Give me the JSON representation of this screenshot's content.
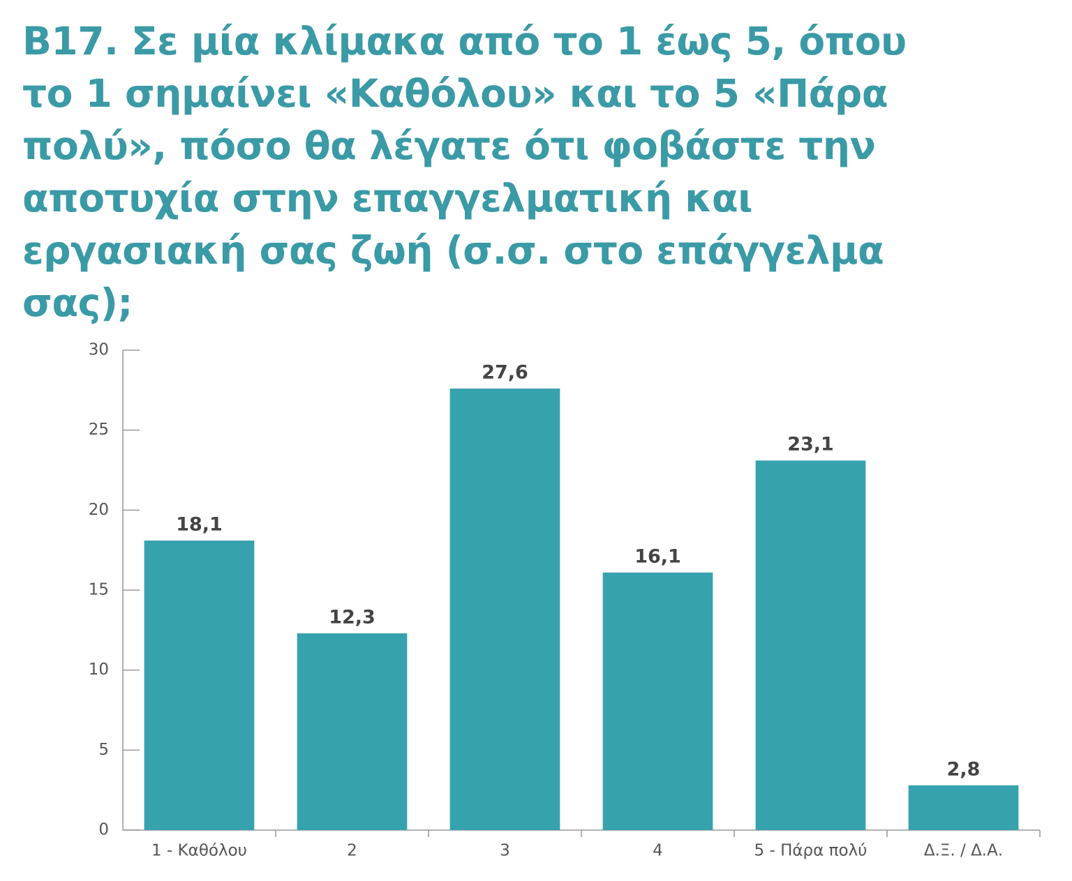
{
  "chart_data": {
    "type": "bar",
    "title": "B17. Σε μία κλίμακα από το 1 έως 5, όπου το 1 σημαίνει «Καθόλου» και το 5 «Πάρα πολύ», πόσο θα λέγατε ότι φοβάστε την αποτυχία στην επαγγελματική και εργασιακή σας ζωή (σ.σ. στο επάγγελμα σας);",
    "categories": [
      "1 - Καθόλου",
      "2",
      "3",
      "4",
      "5 - Πάρα πολύ",
      "Δ.Ξ. / Δ.Α."
    ],
    "values": [
      18.1,
      12.3,
      27.6,
      16.1,
      23.1,
      2.8
    ],
    "value_labels": [
      "18,1",
      "12,3",
      "27,6",
      "16,1",
      "23,1",
      "2,8"
    ],
    "color": "#36a2ae",
    "ylim": [
      0,
      30
    ],
    "yticks": [
      0,
      5,
      10,
      15,
      20,
      25,
      30
    ],
    "grid": false
  }
}
